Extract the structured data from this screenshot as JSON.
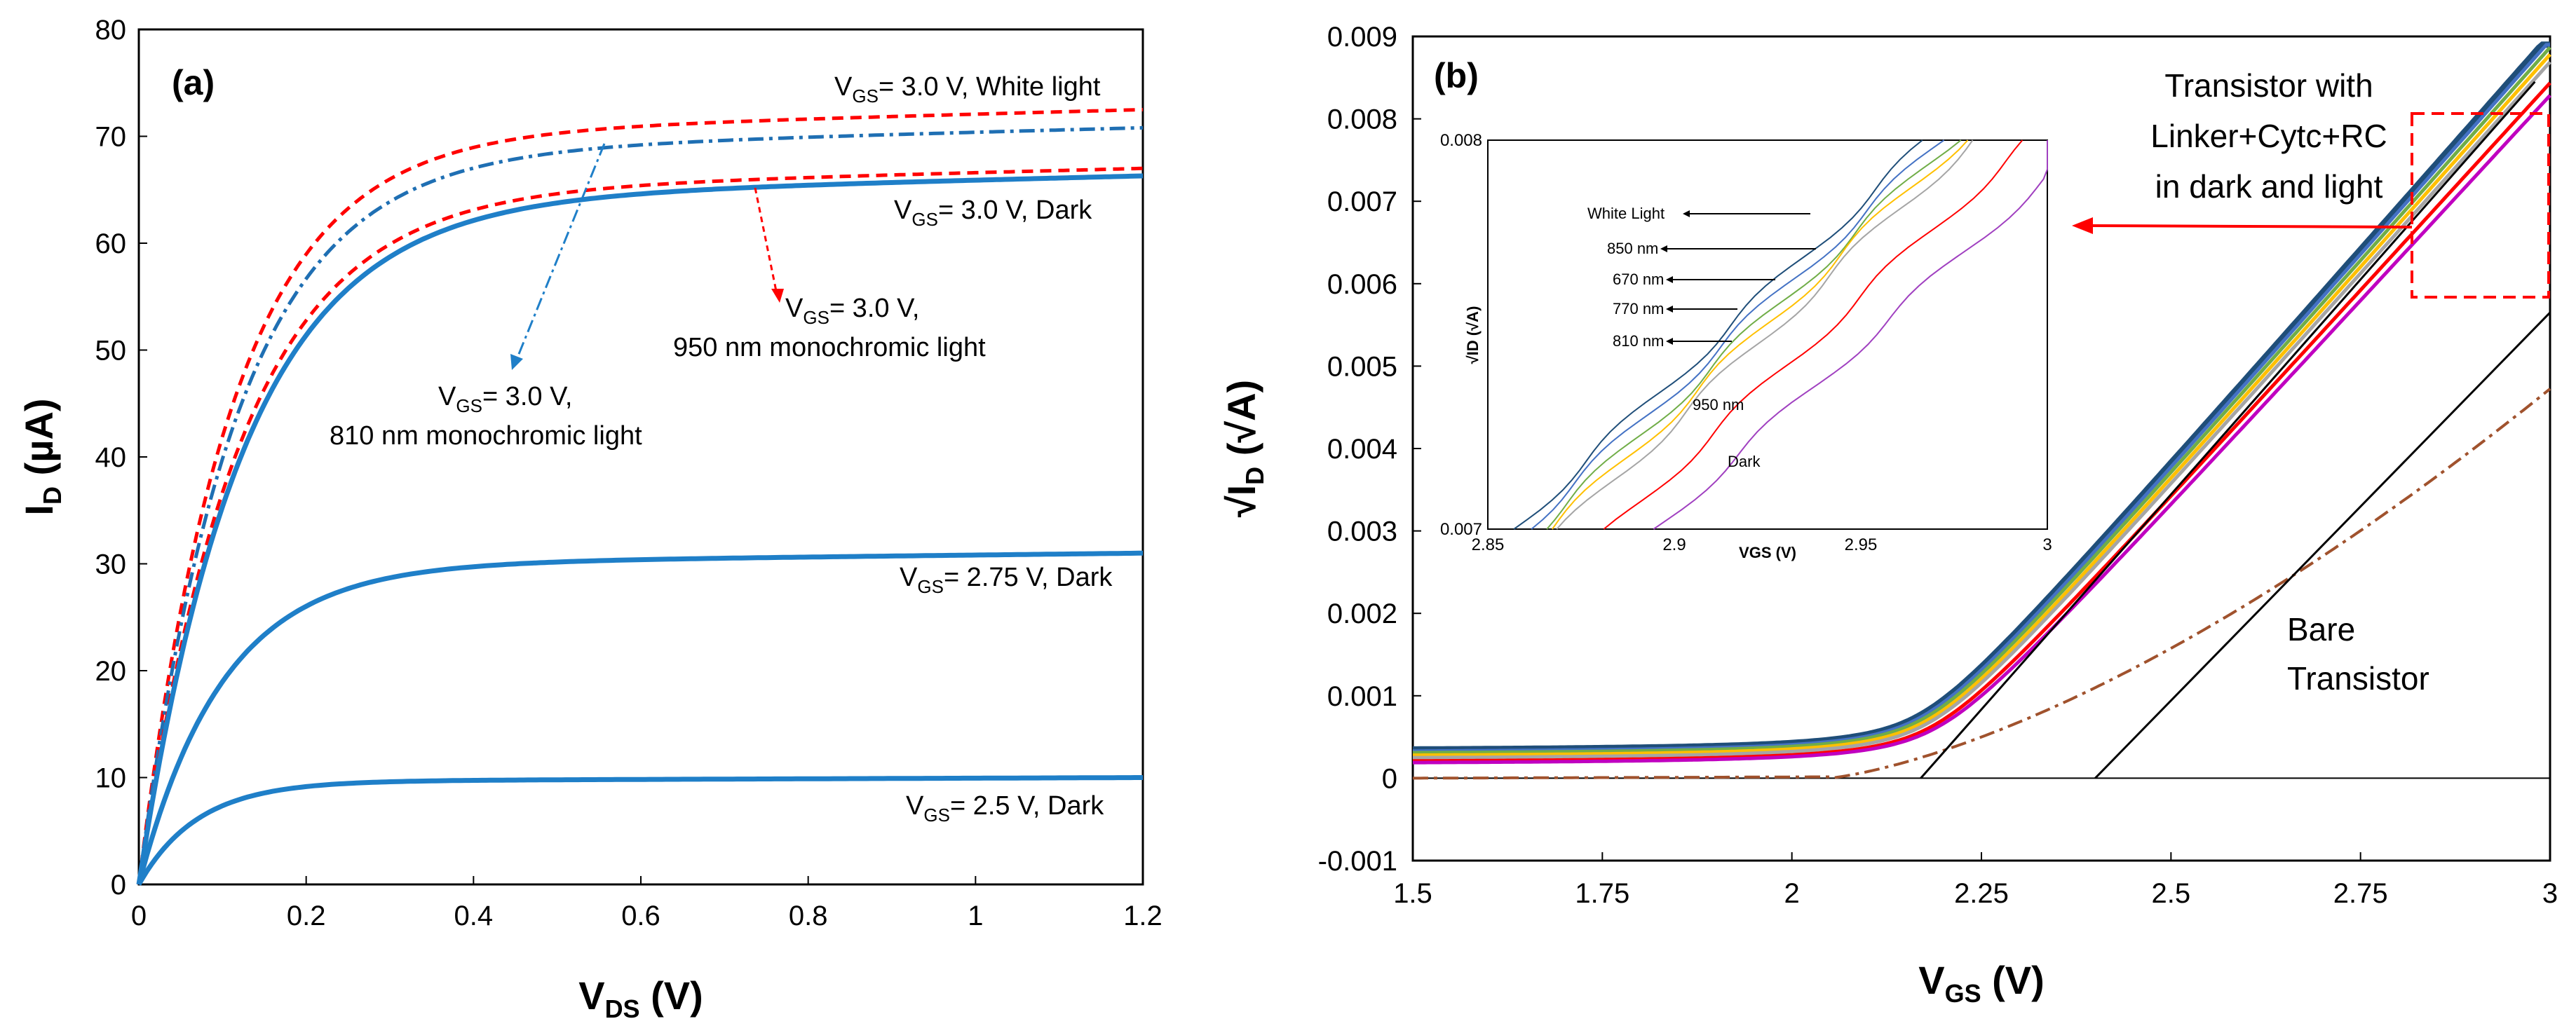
{
  "panel_a": {
    "label": "(a)",
    "chart_data": {
      "type": "line",
      "xlabel_main": "V",
      "xlabel_sub": "DS",
      "xlabel_unit": " (V)",
      "ylabel_main": "I",
      "ylabel_sub": "D",
      "ylabel_unit": " (µA)",
      "xlim": [
        0,
        1.2
      ],
      "ylim": [
        0,
        80
      ],
      "x_ticks": [
        "0",
        "0.2",
        "0.4",
        "0.6",
        "0.8",
        "1",
        "1.2"
      ],
      "y_ticks": [
        "0",
        "10",
        "20",
        "30",
        "40",
        "50",
        "60",
        "70",
        "80"
      ],
      "series": [
        {
          "name": "VGS=3.0 V, White light",
          "style": "dashed",
          "color": "#ff0000",
          "isat": 72.5,
          "tau": 0.11
        },
        {
          "name": "VGS=3.0 V, 810 nm monochromic light",
          "style": "dashdot",
          "color": "#1f6fb3",
          "isat": 70.8,
          "tau": 0.115
        },
        {
          "name": "VGS=3.0 V, 950 nm monochromic light",
          "style": "dashed",
          "color": "#ff0000",
          "isat": 67.0,
          "tau": 0.12
        },
        {
          "name": "VGS=3.0 V, Dark",
          "style": "solid",
          "color": "#1f7fc8",
          "isat": 66.3,
          "tau": 0.125
        },
        {
          "name": "VGS=2.75 V, Dark",
          "style": "solid",
          "color": "#1f7fc8",
          "isat": 31.0,
          "tau": 0.1
        },
        {
          "name": "VGS=2.5 V, Dark",
          "style": "solid",
          "color": "#1f7fc8",
          "isat": 10.0,
          "tau": 0.07
        }
      ],
      "annotations": [
        {
          "pre": "V",
          "sub": "GS",
          "text": "= 3.0 V, White light"
        },
        {
          "pre": "V",
          "sub": "GS",
          "text": "= 3.0 V, Dark"
        },
        {
          "pre": "V",
          "sub": "GS",
          "text": "= 3.0 V,",
          "line2": "950  nm monochromic light"
        },
        {
          "pre": "V",
          "sub": "GS",
          "text": "= 3.0 V,",
          "line2": "810 nm monochromic light"
        },
        {
          "pre": "V",
          "sub": "GS",
          "text": "= 2.75 V, Dark"
        },
        {
          "pre": "V",
          "sub": "GS",
          "text": "= 2.5 V, Dark"
        }
      ]
    }
  },
  "panel_b": {
    "label": "(b)",
    "chart_data": {
      "type": "line",
      "xlabel_main": "V",
      "xlabel_sub": "GS",
      "xlabel_unit": " (V)",
      "ylabel_main": "√I",
      "ylabel_sub": "D",
      "ylabel_unit": " (√A)",
      "xlim": [
        1.5,
        3.0
      ],
      "ylim": [
        -0.001,
        0.009
      ],
      "x_ticks": [
        "1.5",
        "1.75",
        "2",
        "2.25",
        "2.5",
        "2.75",
        "3"
      ],
      "y_ticks": [
        "-0.001",
        "0",
        "0.001",
        "0.002",
        "0.003",
        "0.004",
        "0.005",
        "0.006",
        "0.007",
        "0.008",
        "0.009"
      ],
      "series": [
        {
          "name": "White Light",
          "color": "#1f4e79",
          "base": 0.00032,
          "vt": 2.17,
          "k": 0.01045
        },
        {
          "name": "850 nm",
          "color": "#4472c4",
          "base": 0.0003,
          "vt": 2.172,
          "k": 0.01042
        },
        {
          "name": "670 nm",
          "color": "#70ad47",
          "base": 0.00028,
          "vt": 2.175,
          "k": 0.01038
        },
        {
          "name": "770 nm",
          "color": "#ffc000",
          "base": 0.00025,
          "vt": 2.178,
          "k": 0.01035
        },
        {
          "name": "810 nm",
          "color": "#a5a5a5",
          "base": 0.00022,
          "vt": 2.18,
          "k": 0.0103
        },
        {
          "name": "950 nm",
          "color": "#ff0000",
          "base": 0.00018,
          "vt": 2.185,
          "k": 0.0101
        },
        {
          "name": "Dark",
          "color": "#c000c0",
          "base": 0.00016,
          "vt": 2.19,
          "k": 0.01
        },
        {
          "name": "Bare Transistor",
          "color": "#a0522d",
          "base": 0.0,
          "vt": 2.4,
          "k": 0.0093
        }
      ],
      "annotations": {
        "functionalized_1": "Transistor with",
        "functionalized_2": "Linker+Cytc+RC",
        "functionalized_3": "in dark and light",
        "bare_1": "Bare",
        "bare_2": "Transistor"
      },
      "inset": {
        "xlabel": "VGS (V)",
        "ylabel": "√ID (√A)",
        "xlim": [
          2.85,
          3.0
        ],
        "ylim": [
          0.007,
          0.008
        ],
        "x_ticks": [
          "2.85",
          "2.9",
          "2.95",
          "3"
        ],
        "y_ticks": [
          "0.007",
          "0.008"
        ],
        "labels": [
          "White Light",
          "850 nm",
          "670 nm",
          "770 nm",
          "810 nm",
          "950 nm",
          "Dark"
        ]
      }
    }
  }
}
